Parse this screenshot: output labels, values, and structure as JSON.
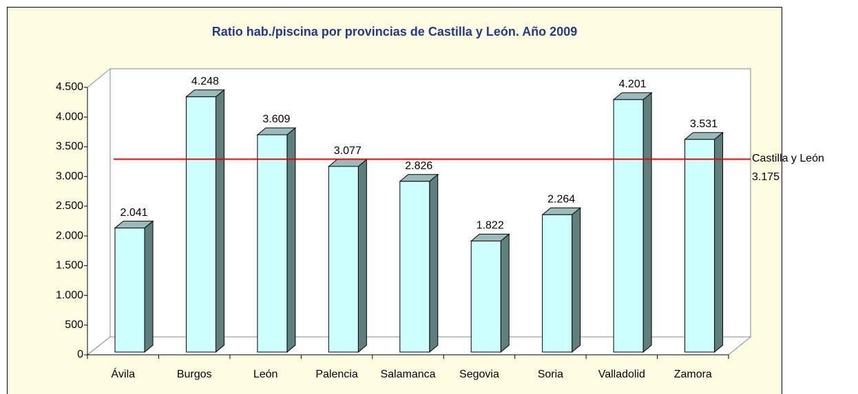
{
  "chart_data": {
    "type": "bar3d",
    "title": "Ratio hab./piscina por provincias de Castilla y León. Año 2009",
    "categories": [
      "Ávila",
      "Burgos",
      "León",
      "Palencia",
      "Salamanca",
      "Segovia",
      "Soria",
      "Valladolid",
      "Zamora"
    ],
    "values": [
      2041,
      4248,
      3609,
      3077,
      2826,
      1822,
      2264,
      4201,
      3531
    ],
    "value_labels": [
      "2.041",
      "4.248",
      "3.609",
      "3.077",
      "2.826",
      "1.822",
      "2.264",
      "4.201",
      "3.531"
    ],
    "color": "#ccffff",
    "ylim": [
      0,
      4500
    ],
    "yticks": [
      0,
      500,
      {
        "value": 1000,
        "label": "1.000"
      },
      {
        "value": 1500,
        "label": "1.500"
      },
      {
        "value": 2000,
        "label": "2.000"
      },
      {
        "value": 2500,
        "label": "2.500"
      },
      {
        "value": 3000,
        "label": "3.000"
      },
      {
        "value": 3500,
        "label": "3.500"
      },
      {
        "value": 4000,
        "label": "4.000"
      },
      {
        "value": 4500,
        "label": "4.500"
      }
    ],
    "reference": {
      "name": "Castilla y León",
      "value": 3175,
      "label": "3.175",
      "color": "#ee0000"
    }
  }
}
